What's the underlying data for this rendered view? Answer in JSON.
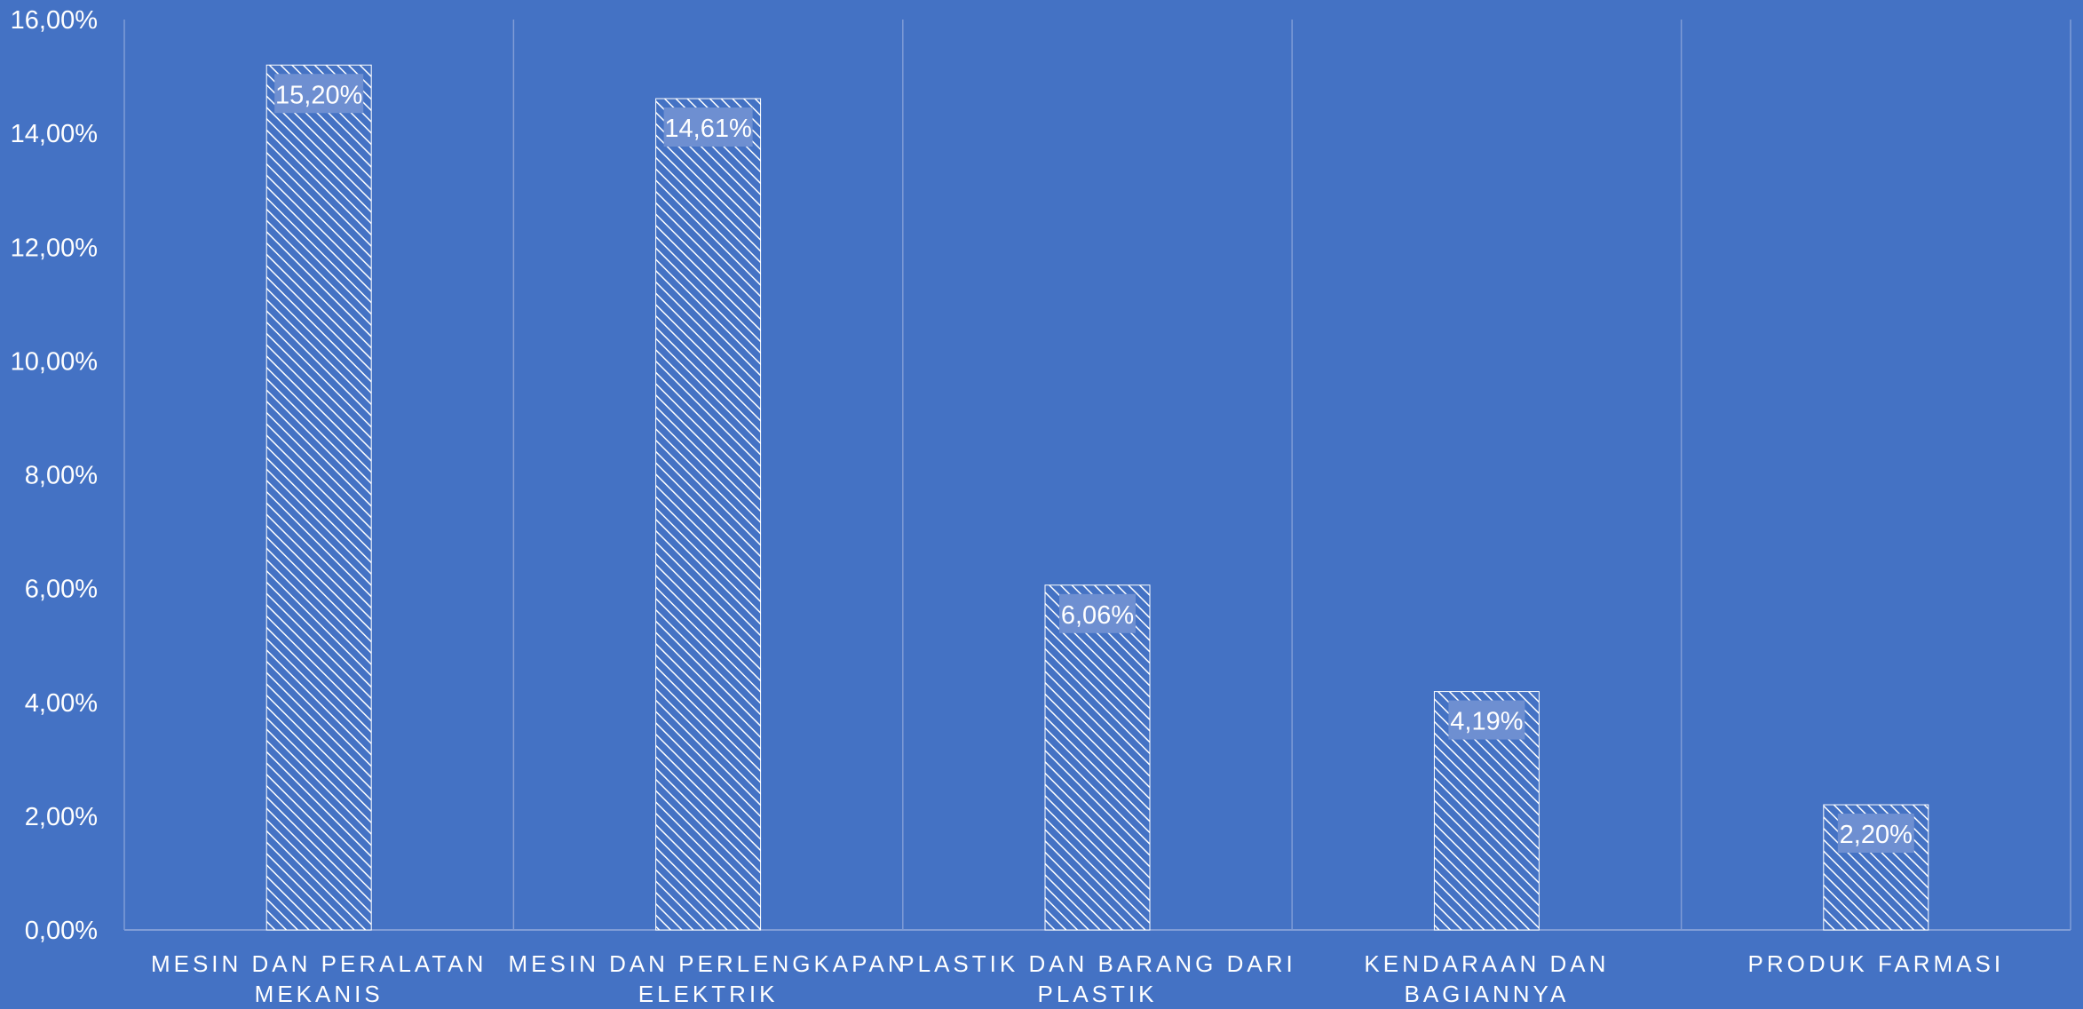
{
  "colors": {
    "background": "#4472C4",
    "bar_stripe": "#ffffff",
    "label_box": "#6E8FD1",
    "gridline": "#7F9CD6",
    "text": "#ffffff"
  },
  "chart_data": {
    "type": "bar",
    "title": "",
    "xlabel": "",
    "ylabel": "",
    "categories": [
      [
        "MESIN DAN PERALATAN",
        "MEKANIS"
      ],
      [
        "MESIN DAN PERLENGKAPAN",
        "ELEKTRIK"
      ],
      [
        "PLASTIK DAN BARANG DARI",
        "PLASTIK"
      ],
      [
        "KENDARAAN DAN",
        "BAGIANNYA"
      ],
      [
        "PRODUK FARMASI"
      ]
    ],
    "values": [
      15.2,
      14.61,
      6.06,
      4.19,
      2.2
    ],
    "data_labels": [
      "15,20%",
      "14,61%",
      "6,06%",
      "4,19%",
      "2,20%"
    ],
    "ylim": [
      0,
      16
    ],
    "yticks": [
      0,
      2,
      4,
      6,
      8,
      10,
      12,
      14,
      16
    ],
    "ytick_labels": [
      "0,00%",
      "2,00%",
      "4,00%",
      "6,00%",
      "8,00%",
      "10,00%",
      "12,00%",
      "14,00%",
      "16,00%"
    ],
    "bar_fill": "diagonal-hatch",
    "grid": "vertical-category-separators",
    "legend": "none"
  }
}
